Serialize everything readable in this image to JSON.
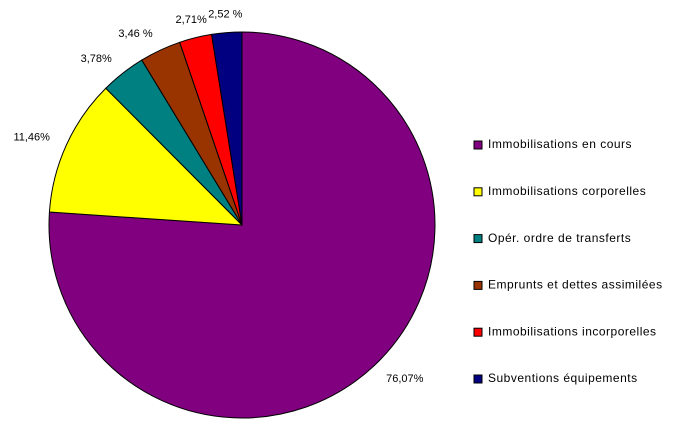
{
  "chart_data": {
    "type": "pie",
    "categories": [
      "Immobilisations en cours",
      "Immobilisations corporelles",
      "Opér. ordre de transferts",
      "Emprunts et dettes assimilées",
      "Immobilisations incorporelles",
      "Subventions équipements"
    ],
    "values": [
      76.07,
      11.46,
      3.78,
      3.46,
      2.71,
      2.52
    ],
    "value_labels": [
      "76,07%",
      "11,46%",
      "3,78%",
      "3,46 %",
      "2,71%",
      "2,52 %"
    ],
    "colors": [
      "#800080",
      "#ffff00",
      "#008080",
      "#993300",
      "#ff0000",
      "#000080"
    ],
    "legend": "right"
  }
}
